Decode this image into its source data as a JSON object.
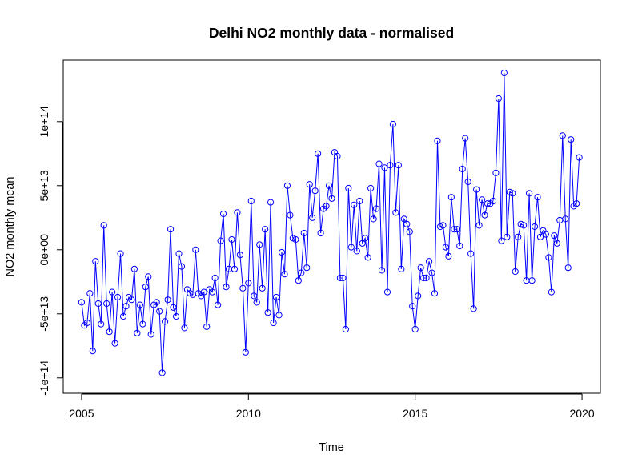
{
  "chart_data": {
    "type": "line",
    "title": "Delhi NO2 monthly data - normalised",
    "xlabel": "Time",
    "ylabel": "NO2 monthly mean",
    "x_start": 2005.0,
    "x_step": 0.0833333,
    "xlim": [
      2004.45,
      2020.55
    ],
    "ylim": [
      -112000000000000.0,
      148000000000000.0
    ],
    "x_ticks": [
      {
        "value": 2005,
        "label": "2005"
      },
      {
        "value": 2010,
        "label": "2010"
      },
      {
        "value": 2015,
        "label": "2015"
      },
      {
        "value": 2020,
        "label": "2020"
      }
    ],
    "y_ticks": [
      {
        "value": -100000000000000.0,
        "label": "-1e+14"
      },
      {
        "value": -50000000000000.0,
        "label": "-5e+13"
      },
      {
        "value": 0,
        "label": "0e+00"
      },
      {
        "value": 50000000000000.0,
        "label": "5e+13"
      },
      {
        "value": 100000000000000.0,
        "label": "1e+14"
      }
    ],
    "grid": false,
    "legend": "none",
    "line_color": "#0000ff",
    "series": [
      {
        "values": [
          -41000000000000.0,
          -59000000000000.0,
          -57000000000000.0,
          -34000000000000.0,
          -79000000000000.0,
          -9000000000000.0,
          -42000000000000.0,
          -58000000000000.0,
          19000000000000.0,
          -42000000000000.0,
          -64000000000000.0,
          -33000000000000.0,
          -73000000000000.0,
          -37000000000000.0,
          -3000000000000.0,
          -52000000000000.0,
          -44000000000000.0,
          -37000000000000.0,
          -39000000000000.0,
          -15000000000000.0,
          -65000000000000.0,
          -43000000000000.0,
          -58000000000000.0,
          -29000000000000.0,
          -21000000000000.0,
          -66000000000000.0,
          -43000000000000.0,
          -41000000000000.0,
          -48000000000000.0,
          -96000000000000.0,
          -56000000000000.0,
          -39000000000000.0,
          16000000000000.0,
          -45000000000000.0,
          -52000000000000.0,
          -3000000000000.0,
          -13000000000000.0,
          -61000000000000.0,
          -31000000000000.0,
          -34000000000000.0,
          -35000000000000.0,
          0.0,
          -34000000000000.0,
          -36000000000000.0,
          -33000000000000.0,
          -60000000000000.0,
          -31000000000000.0,
          -33000000000000.0,
          -22000000000000.0,
          -43000000000000.0,
          7000000000000.0,
          28000000000000.0,
          -29000000000000.0,
          -15000000000000.0,
          8000000000000.0,
          -15000000000000.0,
          29000000000000.0,
          -4000000000000.0,
          -30000000000000.0,
          -80000000000000.0,
          -26000000000000.0,
          38000000000000.0,
          -36000000000000.0,
          -41000000000000.0,
          4000000000000.0,
          -30000000000000.0,
          16000000000000.0,
          -49000000000000.0,
          37000000000000.0,
          -57000000000000.0,
          -37000000000000.0,
          -51000000000000.0,
          -2000000000000.0,
          -19000000000000.0,
          50000000000000.0,
          27000000000000.0,
          9000000000000.0,
          8000000000000.0,
          -24000000000000.0,
          -18000000000000.0,
          13000000000000.0,
          -14000000000000.0,
          51000000000000.0,
          25000000000000.0,
          46000000000000.0,
          75000000000000.0,
          13000000000000.0,
          32000000000000.0,
          34000000000000.0,
          50000000000000.0,
          40000000000000.0,
          76000000000000.0,
          73000000000000.0,
          -22000000000000.0,
          -22000000000000.0,
          -62000000000000.0,
          48000000000000.0,
          2000000000000.0,
          35000000000000.0,
          -1000000000000.0,
          38000000000000.0,
          5000000000000.0,
          9000000000000.0,
          -6000000000000.0,
          48000000000000.0,
          24000000000000.0,
          32000000000000.0,
          67000000000000.0,
          -16000000000000.0,
          64000000000000.0,
          -33000000000000.0,
          66000000000000.0,
          98000000000000.0,
          29000000000000.0,
          66000000000000.0,
          -15000000000000.0,
          24000000000000.0,
          20000000000000.0,
          14000000000000.0,
          -44000000000000.0,
          -62000000000000.0,
          -36000000000000.0,
          -14000000000000.0,
          -22000000000000.0,
          -22000000000000.0,
          -9000000000000.0,
          -18000000000000.0,
          -34000000000000.0,
          85000000000000.0,
          18000000000000.0,
          19000000000000.0,
          2000000000000.0,
          -5000000000000.0,
          41000000000000.0,
          16000000000000.0,
          16000000000000.0,
          3000000000000.0,
          63000000000000.0,
          87000000000000.0,
          53000000000000.0,
          -3000000000000.0,
          -46000000000000.0,
          47000000000000.0,
          19000000000000.0,
          39000000000000.0,
          27000000000000.0,
          36000000000000.0,
          36000000000000.0,
          38000000000000.0,
          60000000000000.0,
          118000000000000.0,
          7000000000000.0,
          138000000000000.0,
          10000000000000.0,
          45000000000000.0,
          44000000000000.0,
          -17000000000000.0,
          10000000000000.0,
          20000000000000.0,
          19000000000000.0,
          -24000000000000.0,
          44000000000000.0,
          -24000000000000.0,
          18000000000000.0,
          41000000000000.0,
          10000000000000.0,
          15000000000000.0,
          12000000000000.0,
          -6000000000000.0,
          -33000000000000.0,
          11000000000000.0,
          5000000000000.0,
          23000000000000.0,
          89000000000000.0,
          24000000000000.0,
          -14000000000000.0,
          86000000000000.0,
          34000000000000.0,
          36000000000000.0,
          72000000000000.0
        ]
      }
    ]
  }
}
